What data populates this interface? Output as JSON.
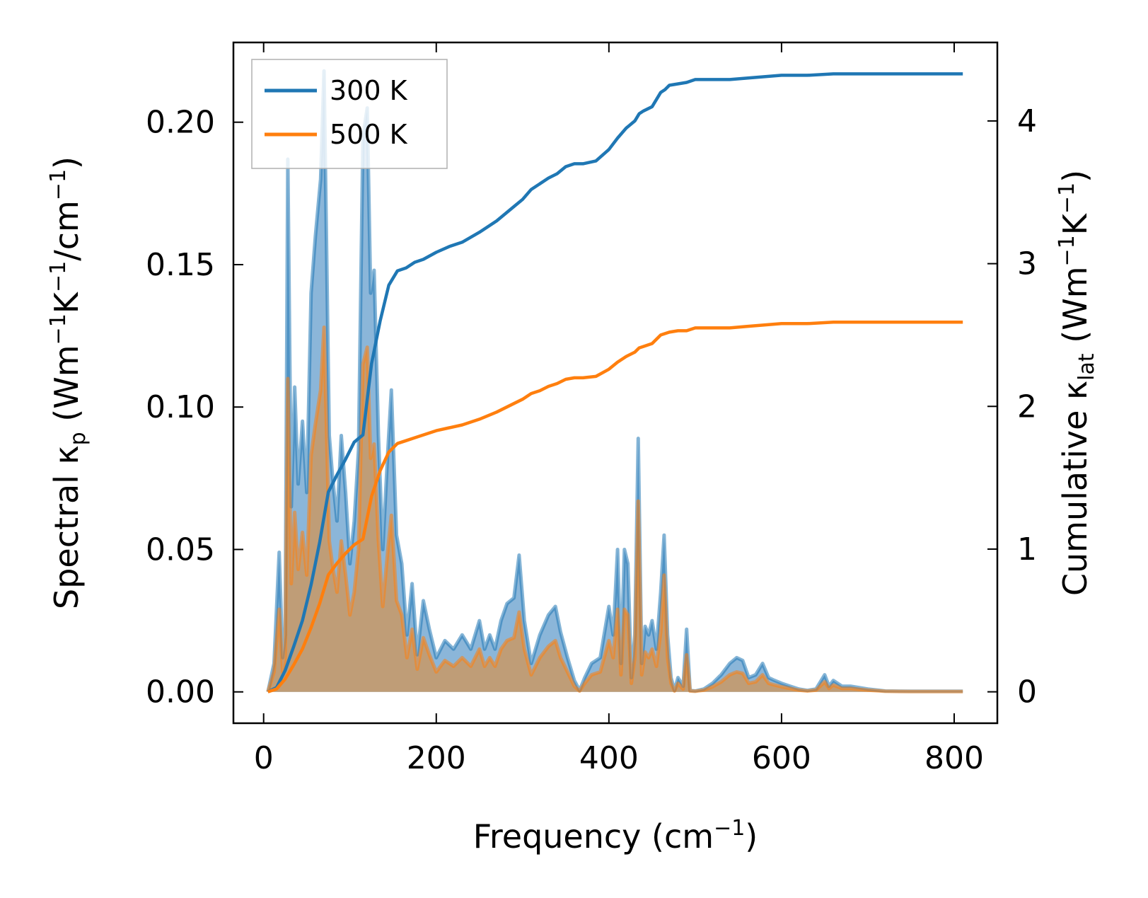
{
  "chart_data": {
    "type": "area+line (dual axis)",
    "xlabel": {
      "text": "Frequency (cm",
      "sup": "−1",
      "tail": ")"
    },
    "ylabel_left": {
      "parts": [
        "Spectral κ",
        "p",
        " (Wm",
        "−1",
        "K",
        "−1",
        "/cm",
        "−1",
        ")"
      ]
    },
    "ylabel_right": {
      "parts": [
        "Cumulative κ",
        "lat",
        " (Wm",
        "−1",
        "K",
        "−1",
        ")"
      ]
    },
    "xlim": [
      -35,
      850
    ],
    "ylim_left": [
      -0.011,
      0.228
    ],
    "ylim_right": [
      -0.22,
      4.55
    ],
    "x_ticks": [
      0,
      200,
      400,
      600,
      800
    ],
    "x_tick_labels": [
      "0",
      "200",
      "400",
      "600",
      "800"
    ],
    "y_left_ticks": [
      0,
      0.05,
      0.1,
      0.15,
      0.2
    ],
    "y_left_tick_labels": [
      "0.00",
      "0.05",
      "0.10",
      "0.15",
      "0.20"
    ],
    "y_right_ticks": [
      0,
      1,
      2,
      3,
      4
    ],
    "y_right_tick_labels": [
      "0",
      "1",
      "2",
      "3",
      "4"
    ],
    "legend": {
      "position": "top-left",
      "entries": [
        "300 K",
        "500 K"
      ]
    },
    "colors": {
      "series_300": "#1f77b4",
      "series_500": "#ff7f0e",
      "fill_300": "#77a9d2",
      "fill_500": "#c49a6c"
    },
    "spectral": {
      "x": [
        5,
        12,
        18,
        22,
        25,
        28,
        32,
        36,
        40,
        45,
        50,
        55,
        60,
        66,
        70,
        76,
        80,
        85,
        90,
        95,
        100,
        105,
        110,
        115,
        120,
        124,
        128,
        133,
        138,
        144,
        148,
        154,
        160,
        166,
        172,
        178,
        185,
        192,
        200,
        210,
        220,
        230,
        240,
        250,
        256,
        262,
        268,
        275,
        282,
        290,
        296,
        302,
        310,
        320,
        330,
        338,
        344,
        352,
        360,
        366,
        372,
        380,
        390,
        400,
        405,
        410,
        414,
        418,
        422,
        426,
        430,
        434,
        438,
        442,
        446,
        450,
        455,
        460,
        464,
        468,
        472,
        476,
        480,
        486,
        490,
        494,
        500,
        510,
        520,
        530,
        540,
        548,
        555,
        562,
        570,
        578,
        585,
        592,
        600,
        610,
        620,
        630,
        640,
        650,
        655,
        660,
        670,
        680,
        690,
        700,
        720,
        750,
        780,
        810
      ],
      "series": [
        {
          "name": "300 K",
          "values": [
            0,
            0.01,
            0.049,
            0.012,
            0.02,
            0.187,
            0.065,
            0.107,
            0.073,
            0.095,
            0.07,
            0.14,
            0.16,
            0.18,
            0.218,
            0.09,
            0.075,
            0.06,
            0.09,
            0.07,
            0.045,
            0.06,
            0.085,
            0.195,
            0.205,
            0.14,
            0.148,
            0.09,
            0.05,
            0.085,
            0.106,
            0.055,
            0.045,
            0.02,
            0.038,
            0.013,
            0.032,
            0.022,
            0.012,
            0.018,
            0.015,
            0.02,
            0.015,
            0.025,
            0.015,
            0.02,
            0.015,
            0.025,
            0.031,
            0.033,
            0.048,
            0.025,
            0.01,
            0.02,
            0.027,
            0.03,
            0.021,
            0.012,
            0.004,
            0.0005,
            0.005,
            0.01,
            0.012,
            0.03,
            0.02,
            0.05,
            0.01,
            0.05,
            0.045,
            0.005,
            0.02,
            0.089,
            0.01,
            0.023,
            0.02,
            0.025,
            0.015,
            0.035,
            0.055,
            0.02,
            0.005,
            0.0005,
            0.005,
            0.002,
            0.022,
            0.0005,
            0.0003,
            0.001,
            0.003,
            0.006,
            0.01,
            0.012,
            0.011,
            0.005,
            0.006,
            0.01,
            0.005,
            0.004,
            0.003,
            0.002,
            0.001,
            0.0005,
            0.001,
            0.006,
            0.002,
            0.004,
            0.002,
            0.002,
            0.0015,
            0.001,
            0.0003,
            0.0002,
            0.0002,
            0.0002
          ]
        },
        {
          "name": "500 K",
          "values": [
            0,
            0.007,
            0.029,
            0.007,
            0.012,
            0.11,
            0.038,
            0.063,
            0.043,
            0.056,
            0.041,
            0.083,
            0.094,
            0.106,
            0.128,
            0.053,
            0.044,
            0.035,
            0.053,
            0.041,
            0.027,
            0.035,
            0.05,
            0.115,
            0.121,
            0.082,
            0.087,
            0.053,
            0.03,
            0.05,
            0.062,
            0.032,
            0.027,
            0.012,
            0.022,
            0.008,
            0.019,
            0.013,
            0.007,
            0.011,
            0.009,
            0.012,
            0.009,
            0.015,
            0.009,
            0.012,
            0.009,
            0.015,
            0.018,
            0.019,
            0.028,
            0.015,
            0.006,
            0.012,
            0.016,
            0.018,
            0.012,
            0.007,
            0.002,
            0.0003,
            0.003,
            0.006,
            0.007,
            0.018,
            0.012,
            0.029,
            0.006,
            0.029,
            0.027,
            0.003,
            0.012,
            0.067,
            0.006,
            0.014,
            0.012,
            0.015,
            0.009,
            0.021,
            0.041,
            0.012,
            0.003,
            0.0003,
            0.003,
            0.001,
            0.013,
            0.0003,
            0.0002,
            0.0006,
            0.0018,
            0.0035,
            0.006,
            0.007,
            0.0065,
            0.003,
            0.0035,
            0.006,
            0.003,
            0.0024,
            0.0018,
            0.0012,
            0.0006,
            0.0003,
            0.0006,
            0.0035,
            0.0012,
            0.0024,
            0.0012,
            0.0012,
            0.0009,
            0.0006,
            0.0002,
            0.0001,
            0.0001,
            0.0001
          ]
        }
      ]
    },
    "cumulative": {
      "x": [
        5,
        15,
        25,
        35,
        45,
        55,
        65,
        75,
        85,
        95,
        105,
        115,
        125,
        135,
        145,
        155,
        165,
        175,
        185,
        200,
        215,
        230,
        250,
        270,
        290,
        300,
        310,
        320,
        330,
        340,
        350,
        360,
        370,
        385,
        400,
        410,
        420,
        430,
        435,
        440,
        450,
        460,
        465,
        470,
        480,
        490,
        500,
        520,
        540,
        560,
        580,
        600,
        630,
        660,
        700,
        750,
        810
      ],
      "series": [
        {
          "name": "300 K",
          "values": [
            0,
            0.03,
            0.15,
            0.32,
            0.5,
            0.75,
            1.05,
            1.4,
            1.52,
            1.63,
            1.75,
            1.8,
            2.3,
            2.6,
            2.85,
            2.95,
            2.97,
            3.01,
            3.03,
            3.08,
            3.12,
            3.15,
            3.22,
            3.3,
            3.4,
            3.45,
            3.52,
            3.56,
            3.6,
            3.63,
            3.68,
            3.7,
            3.7,
            3.72,
            3.8,
            3.88,
            3.95,
            4.0,
            4.05,
            4.07,
            4.1,
            4.2,
            4.22,
            4.25,
            4.26,
            4.27,
            4.29,
            4.29,
            4.29,
            4.3,
            4.31,
            4.32,
            4.32,
            4.33,
            4.33,
            4.33,
            4.33
          ]
        },
        {
          "name": "500 K",
          "values": [
            0,
            0.02,
            0.09,
            0.19,
            0.3,
            0.45,
            0.62,
            0.82,
            0.9,
            0.97,
            1.03,
            1.07,
            1.37,
            1.55,
            1.68,
            1.74,
            1.76,
            1.78,
            1.8,
            1.83,
            1.85,
            1.87,
            1.91,
            1.96,
            2.02,
            2.05,
            2.09,
            2.11,
            2.14,
            2.16,
            2.19,
            2.2,
            2.2,
            2.21,
            2.26,
            2.31,
            2.35,
            2.38,
            2.41,
            2.42,
            2.44,
            2.5,
            2.51,
            2.52,
            2.53,
            2.53,
            2.55,
            2.55,
            2.55,
            2.56,
            2.57,
            2.58,
            2.58,
            2.59,
            2.59,
            2.59,
            2.59
          ]
        }
      ]
    }
  }
}
